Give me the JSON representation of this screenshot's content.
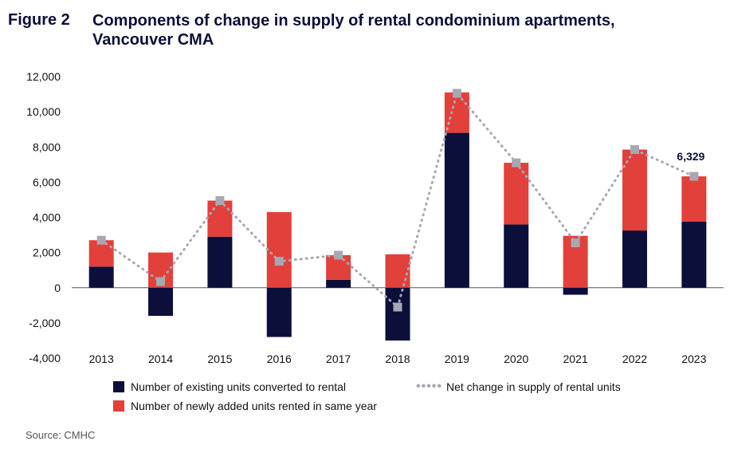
{
  "figure": {
    "label": "Figure 2",
    "title": "Components of change in supply of rental condominium apartments, Vancouver CMA"
  },
  "source": "Source: CMHC",
  "chart_data": {
    "type": "bar",
    "stacked": true,
    "categories": [
      "2013",
      "2014",
      "2015",
      "2016",
      "2017",
      "2018",
      "2019",
      "2020",
      "2021",
      "2022",
      "2023"
    ],
    "series": [
      {
        "name": "Number of existing units converted to rental",
        "color": "#0b0f3a",
        "values": [
          1200,
          -1600,
          2900,
          -2800,
          450,
          -3000,
          8800,
          3600,
          -400,
          3250,
          3750
        ]
      },
      {
        "name": "Number of newly added units rented in same year",
        "color": "#e2403a",
        "values": [
          1500,
          2000,
          2050,
          4300,
          1400,
          1900,
          2300,
          3500,
          2950,
          4600,
          2579
        ]
      }
    ],
    "line_series": {
      "name": "Net change in supply of rental units",
      "color": "#a6a8b4",
      "values": [
        2700,
        350,
        4950,
        1500,
        1850,
        -1100,
        11050,
        7100,
        2550,
        7850,
        6329
      ]
    },
    "annotation": {
      "category": "2023",
      "text": "6,329"
    },
    "yticks": [
      "12,000",
      "10,000",
      "8,000",
      "6,000",
      "4,000",
      "2,000",
      "0",
      "-2,000",
      "-4,000"
    ],
    "ylim": [
      -4000,
      12000
    ],
    "legend_position": "bottom"
  }
}
